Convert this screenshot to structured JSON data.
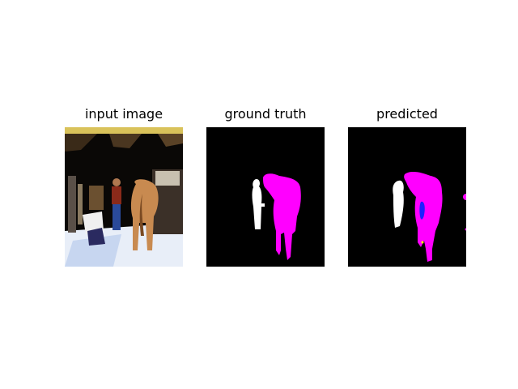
{
  "panels": [
    {
      "title": "input image"
    },
    {
      "title": "ground truth"
    },
    {
      "title": "predicted"
    }
  ],
  "colors": {
    "background": "#000000",
    "person_mask": "#ffffff",
    "horse_mask": "#ff00ff",
    "other_mask": "#1f1fff"
  }
}
